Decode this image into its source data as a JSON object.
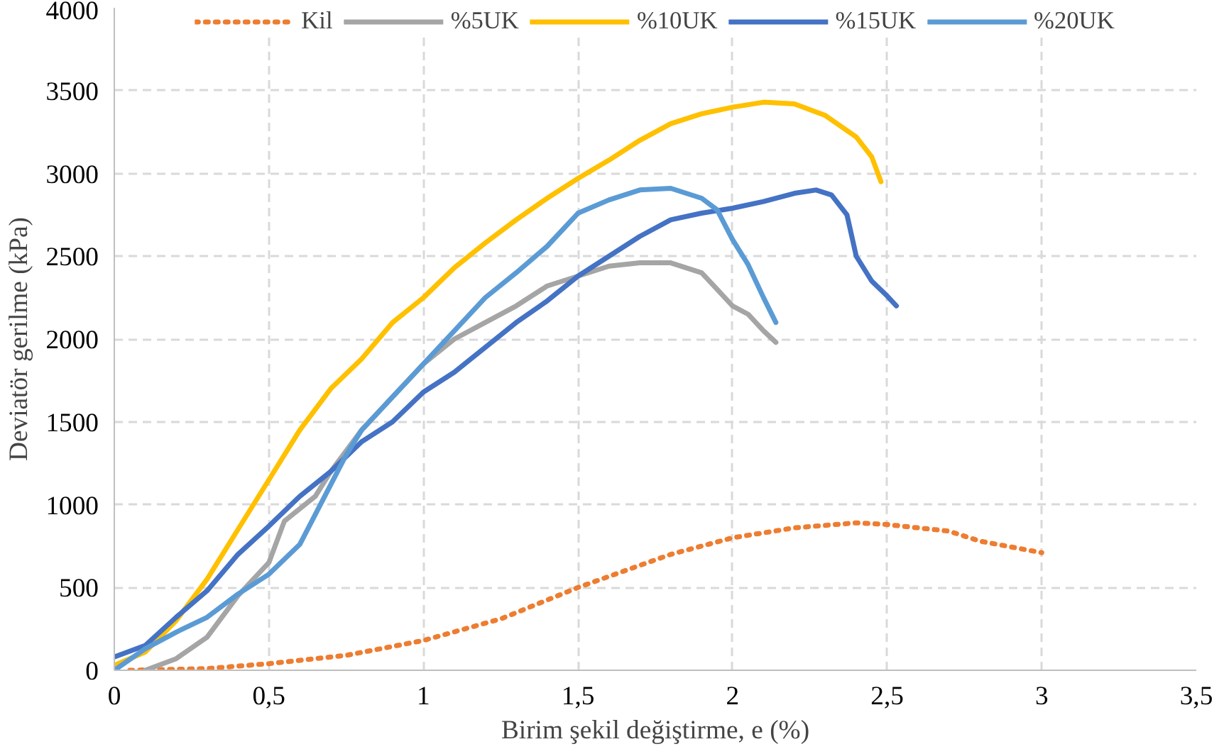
{
  "chart_data": {
    "type": "line",
    "xlabel": "Birim şekil değiştirme, e (%)",
    "ylabel": "Deviatör gerilme (kPa)",
    "xlim": [
      0,
      3.5
    ],
    "ylim": [
      0,
      4000
    ],
    "xticks": [
      0,
      {
        "value": 0.5,
        "label": "0,5"
      },
      1,
      {
        "value": 1.5,
        "label": "1,5"
      },
      2,
      {
        "value": 2.5,
        "label": "2,5"
      },
      3,
      {
        "value": 3.5,
        "label": "3,5"
      }
    ],
    "yticks": [
      0,
      500,
      1000,
      1500,
      2000,
      2500,
      3000,
      3500,
      4000
    ],
    "grid": true,
    "legend": "top",
    "marker": "none",
    "series": [
      {
        "name": "Kil",
        "color": "#ed7d31",
        "line_style": "dotted",
        "x": [
          0.05,
          0.3,
          0.5,
          0.75,
          1.0,
          1.25,
          1.5,
          1.8,
          2.0,
          2.2,
          2.4,
          2.5,
          2.7,
          2.8,
          3.0
        ],
        "values": [
          0,
          10,
          40,
          90,
          180,
          310,
          500,
          700,
          800,
          860,
          890,
          880,
          840,
          780,
          710
        ]
      },
      {
        "name": "%5UK",
        "color": "#a5a5a5",
        "line_style": "solid",
        "x": [
          0.1,
          0.2,
          0.3,
          0.4,
          0.5,
          0.55,
          0.65,
          0.7,
          0.8,
          0.9,
          1.0,
          1.1,
          1.2,
          1.3,
          1.4,
          1.5,
          1.6,
          1.7,
          1.8,
          1.9,
          2.0,
          2.05,
          2.1,
          2.14
        ],
        "values": [
          0,
          70,
          200,
          450,
          650,
          900,
          1050,
          1200,
          1450,
          1650,
          1850,
          2000,
          2100,
          2200,
          2320,
          2380,
          2440,
          2460,
          2460,
          2400,
          2200,
          2150,
          2050,
          1980
        ]
      },
      {
        "name": "%10UK",
        "color": "#ffc000",
        "line_style": "solid",
        "x": [
          0,
          0.1,
          0.2,
          0.3,
          0.4,
          0.5,
          0.6,
          0.7,
          0.8,
          0.9,
          1.0,
          1.1,
          1.2,
          1.3,
          1.4,
          1.5,
          1.6,
          1.7,
          1.8,
          1.9,
          2.0,
          2.1,
          2.2,
          2.3,
          2.4,
          2.45,
          2.48
        ],
        "values": [
          30,
          110,
          300,
          550,
          850,
          1150,
          1450,
          1700,
          1880,
          2100,
          2250,
          2430,
          2580,
          2720,
          2850,
          2970,
          3080,
          3200,
          3300,
          3360,
          3400,
          3430,
          3420,
          3350,
          3220,
          3100,
          2950
        ]
      },
      {
        "name": "%15UK",
        "color": "#4472c4",
        "line_style": "solid",
        "x": [
          0,
          0.1,
          0.2,
          0.3,
          0.4,
          0.5,
          0.6,
          0.7,
          0.8,
          0.9,
          1.0,
          1.1,
          1.2,
          1.3,
          1.4,
          1.5,
          1.6,
          1.7,
          1.8,
          1.9,
          2.0,
          2.1,
          2.2,
          2.27,
          2.32,
          2.37,
          2.4,
          2.45,
          2.5,
          2.53
        ],
        "values": [
          80,
          150,
          320,
          480,
          700,
          870,
          1050,
          1200,
          1380,
          1500,
          1680,
          1800,
          1950,
          2100,
          2230,
          2380,
          2500,
          2620,
          2720,
          2760,
          2790,
          2830,
          2880,
          2900,
          2870,
          2750,
          2500,
          2350,
          2260,
          2200
        ]
      },
      {
        "name": "%20UK",
        "color": "#5b9bd5",
        "line_style": "solid",
        "x": [
          0,
          0.1,
          0.2,
          0.3,
          0.4,
          0.5,
          0.6,
          0.7,
          0.75,
          0.8,
          0.9,
          1.0,
          1.1,
          1.2,
          1.3,
          1.4,
          1.5,
          1.6,
          1.7,
          1.8,
          1.9,
          1.95,
          2.0,
          2.05,
          2.1,
          2.14
        ],
        "values": [
          0,
          130,
          230,
          320,
          460,
          580,
          760,
          1120,
          1300,
          1450,
          1650,
          1850,
          2050,
          2250,
          2400,
          2560,
          2760,
          2840,
          2900,
          2910,
          2850,
          2780,
          2600,
          2450,
          2250,
          2100
        ]
      }
    ]
  }
}
